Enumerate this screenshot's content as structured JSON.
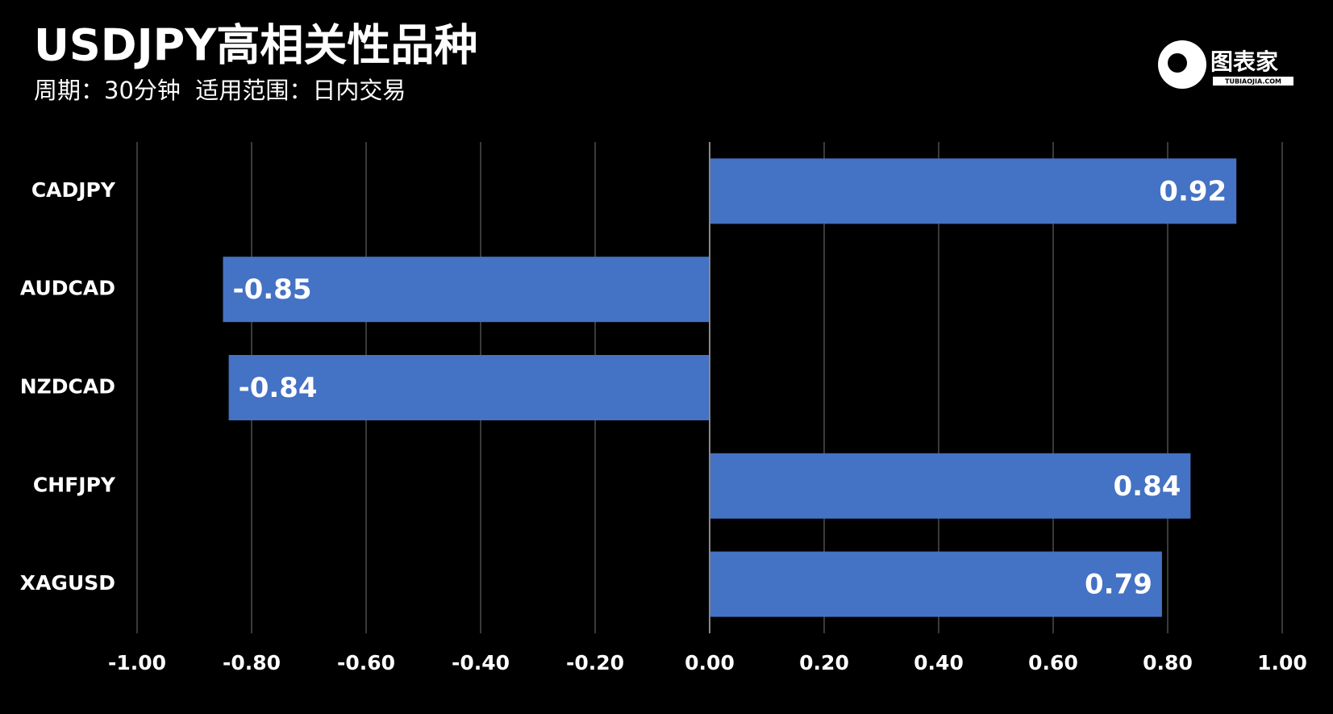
{
  "chart_data": {
    "type": "bar",
    "orientation": "horizontal",
    "title": "USDJPY高相关性品种",
    "subtitle": "周期：30分钟  适用范围：日内交易",
    "categories": [
      "CADJPY",
      "AUDCAD",
      "NZDCAD",
      "CHFJPY",
      "XAGUSD"
    ],
    "values": [
      0.92,
      -0.85,
      -0.84,
      0.84,
      0.79
    ],
    "color": "#4472c4",
    "xlim": [
      -1,
      1
    ],
    "xticks": [
      {
        "value": -1,
        "label": "-1.00"
      },
      {
        "value": -0.8,
        "label": "-0.80"
      },
      {
        "value": -0.6,
        "label": "-0.60"
      },
      {
        "value": -0.4,
        "label": "-0.40"
      },
      {
        "value": -0.2,
        "label": "-0.20"
      },
      {
        "value": 0,
        "label": "0.00"
      },
      {
        "value": 0.2,
        "label": "0.20"
      },
      {
        "value": 0.4,
        "label": "0.40"
      },
      {
        "value": 0.6,
        "label": "0.60"
      },
      {
        "value": 0.8,
        "label": "0.80"
      },
      {
        "value": 1,
        "label": "1.00"
      }
    ],
    "grid": true
  },
  "logo": {
    "name": "图表家",
    "url": "TUBIAOJIA.COM"
  }
}
